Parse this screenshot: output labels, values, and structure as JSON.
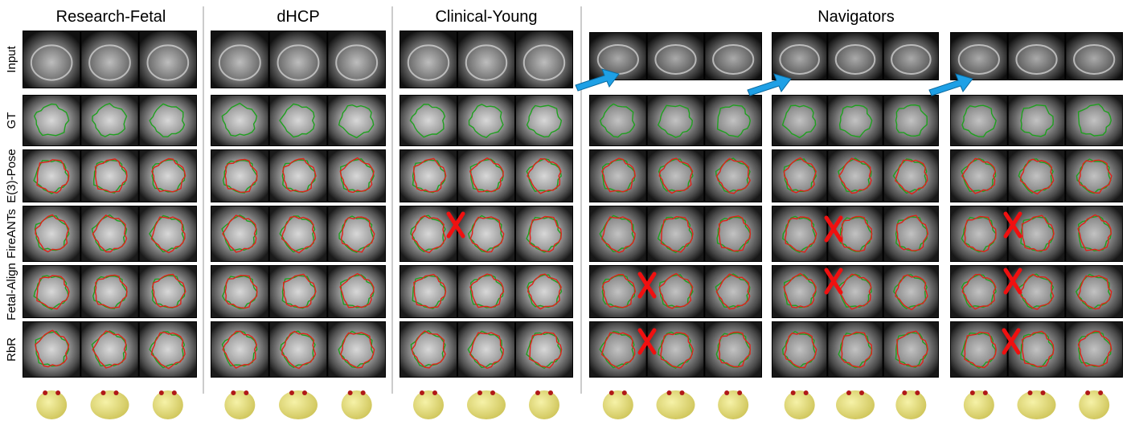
{
  "columns": [
    "Research-Fetal",
    "dHCP",
    "Clinical-Young",
    "Navigators"
  ],
  "rows": [
    "Input",
    "GT",
    "E(3)-Pose",
    "FireANTs",
    "Fetal-Align",
    "RbR"
  ]
}
